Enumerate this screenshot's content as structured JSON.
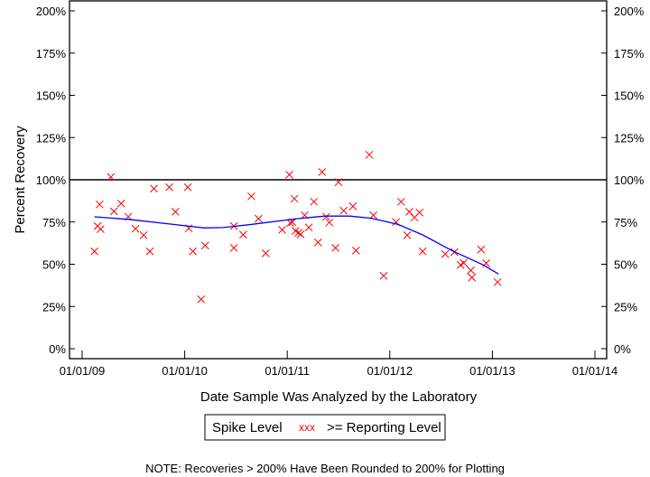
{
  "chart_data": {
    "type": "scatter",
    "title": "",
    "xlabel": "Date Sample Was Analyzed by the Laboratory",
    "ylabel": "Percent Recovery",
    "x_unit": "decimal year",
    "xlim": [
      2009.0,
      2014.0
    ],
    "ylim": [
      0,
      200
    ],
    "x_ticks": [
      {
        "value": 2009,
        "label": "01/01/09"
      },
      {
        "value": 2010,
        "label": "01/01/10"
      },
      {
        "value": 2011,
        "label": "01/01/11"
      },
      {
        "value": 2012,
        "label": "01/01/12"
      },
      {
        "value": 2013,
        "label": "01/01/13"
      },
      {
        "value": 2014,
        "label": "01/01/14"
      }
    ],
    "y_ticks": [
      {
        "value": 0,
        "label": "0%"
      },
      {
        "value": 25,
        "label": "25%"
      },
      {
        "value": 50,
        "label": "50%"
      },
      {
        "value": 75,
        "label": "75%"
      },
      {
        "value": 100,
        "label": "100%"
      },
      {
        "value": 125,
        "label": "125%"
      },
      {
        "value": 150,
        "label": "150%"
      },
      {
        "value": 175,
        "label": "175%"
      },
      {
        "value": 200,
        "label": "200%"
      }
    ],
    "reference_line": {
      "value": 100,
      "color": "#000000"
    },
    "series": [
      {
        "name": ">= Reporting Level",
        "marker": "x",
        "color": "#ff0000",
        "points": [
          [
            2009.12,
            57.6
          ],
          [
            2009.15,
            72.6
          ],
          [
            2009.17,
            85.4
          ],
          [
            2009.18,
            70.8
          ],
          [
            2009.28,
            101.6
          ],
          [
            2009.31,
            81.3
          ],
          [
            2009.38,
            85.9
          ],
          [
            2009.45,
            78.1
          ],
          [
            2009.52,
            71.0
          ],
          [
            2009.6,
            67.2
          ],
          [
            2009.66,
            57.6
          ],
          [
            2009.7,
            94.8
          ],
          [
            2009.85,
            95.6
          ],
          [
            2009.91,
            81.1
          ],
          [
            2010.03,
            95.6
          ],
          [
            2010.04,
            71.3
          ],
          [
            2010.08,
            57.6
          ],
          [
            2010.16,
            29.2
          ],
          [
            2010.2,
            61.1
          ],
          [
            2010.48,
            72.6
          ],
          [
            2010.48,
            59.7
          ],
          [
            2010.57,
            67.5
          ],
          [
            2010.65,
            90.2
          ],
          [
            2010.72,
            77.0
          ],
          [
            2010.79,
            56.5
          ],
          [
            2010.95,
            70.4
          ],
          [
            2011.02,
            103.0
          ],
          [
            2011.03,
            74.5
          ],
          [
            2011.05,
            74.9
          ],
          [
            2011.07,
            88.8
          ],
          [
            2011.08,
            69.7
          ],
          [
            2011.11,
            68.6
          ],
          [
            2011.13,
            67.7
          ],
          [
            2011.17,
            79.0
          ],
          [
            2011.21,
            71.8
          ],
          [
            2011.26,
            87.0
          ],
          [
            2011.3,
            62.9
          ],
          [
            2011.34,
            104.6
          ],
          [
            2011.38,
            78.1
          ],
          [
            2011.41,
            74.7
          ],
          [
            2011.47,
            59.7
          ],
          [
            2011.5,
            98.6
          ],
          [
            2011.55,
            81.7
          ],
          [
            2011.64,
            84.3
          ],
          [
            2011.67,
            58.1
          ],
          [
            2011.8,
            114.8
          ],
          [
            2011.84,
            79.0
          ],
          [
            2011.94,
            43.2
          ],
          [
            2012.06,
            75.0
          ],
          [
            2012.11,
            87.0
          ],
          [
            2012.17,
            67.2
          ],
          [
            2012.19,
            81.1
          ],
          [
            2012.24,
            77.7
          ],
          [
            2012.29,
            80.6
          ],
          [
            2012.32,
            57.6
          ],
          [
            2012.54,
            56.0
          ],
          [
            2012.63,
            57.2
          ],
          [
            2012.69,
            49.6
          ],
          [
            2012.72,
            50.8
          ],
          [
            2012.79,
            46.4
          ],
          [
            2012.8,
            42.1
          ],
          [
            2012.89,
            58.7
          ],
          [
            2012.94,
            50.6
          ],
          [
            2013.05,
            39.4
          ]
        ]
      },
      {
        "name": "Spike Level",
        "type": "line",
        "color": "#0000ff",
        "points": [
          [
            2009.12,
            78.1
          ],
          [
            2009.45,
            76.6
          ],
          [
            2009.86,
            73.8
          ],
          [
            2010.19,
            71.5
          ],
          [
            2010.37,
            71.7
          ],
          [
            2010.63,
            73.4
          ],
          [
            2011.1,
            77.0
          ],
          [
            2011.37,
            78.5
          ],
          [
            2011.61,
            78.5
          ],
          [
            2011.82,
            77.2
          ],
          [
            2012.08,
            73.6
          ],
          [
            2012.32,
            67.4
          ],
          [
            2012.61,
            57.9
          ],
          [
            2012.91,
            49.6
          ],
          [
            2013.06,
            44.2
          ]
        ]
      }
    ],
    "legend": {
      "position": "bottom-center",
      "items": [
        {
          "label": "Spike Level"
        },
        {
          "symbol": "xxx",
          "label": ">= Reporting Level",
          "color": "#ff0000"
        }
      ]
    },
    "note": "NOTE: Recoveries > 200% Have Been Rounded to 200% for Plotting"
  }
}
